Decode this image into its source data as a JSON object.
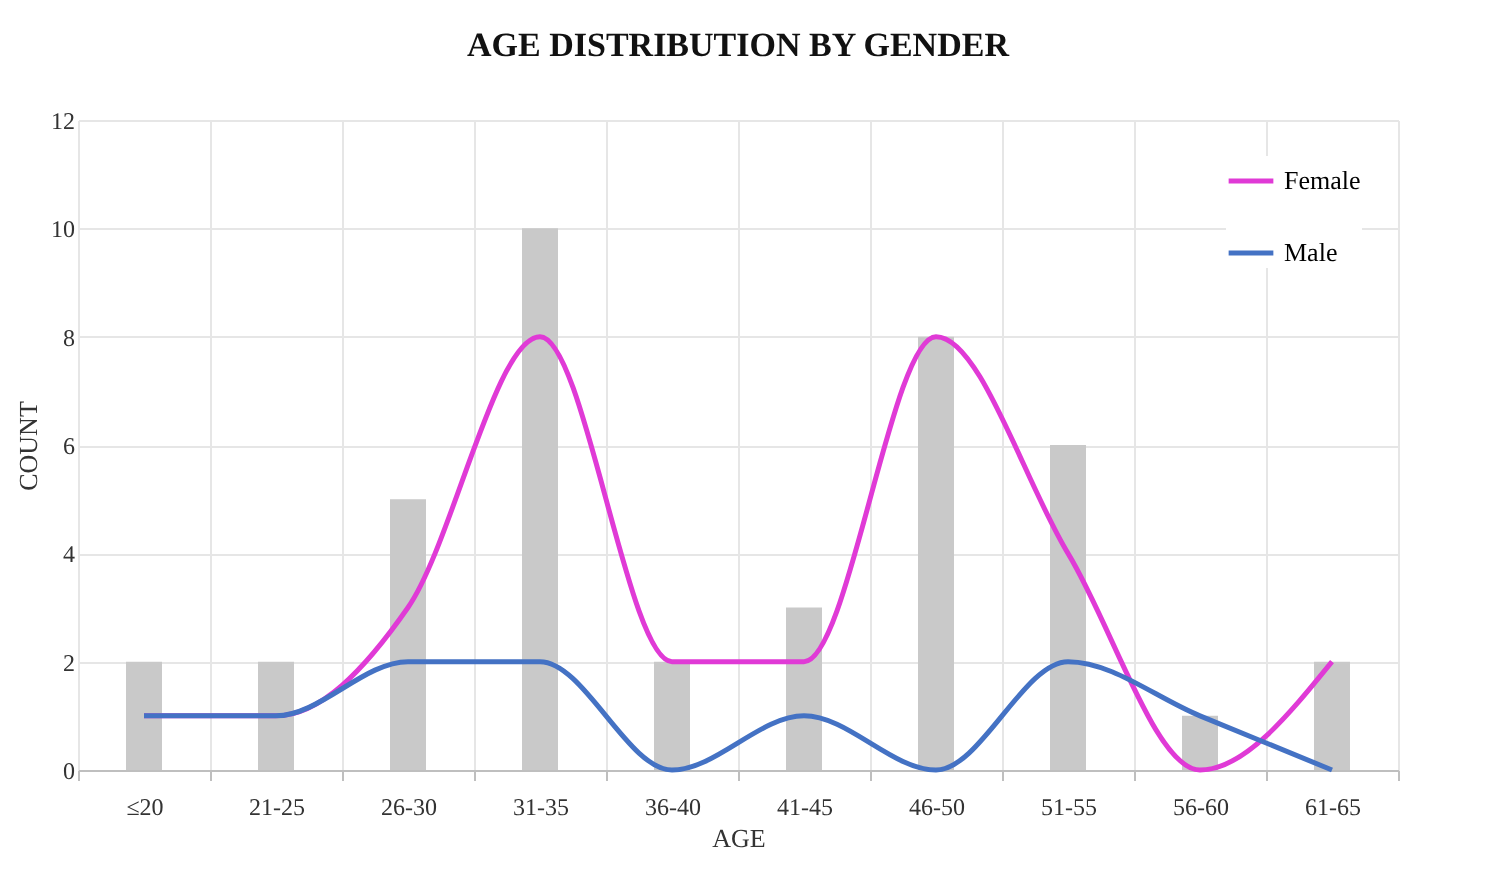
{
  "chart_data": {
    "type": "bar",
    "title": "AGE DISTRIBUTION BY GENDER",
    "xlabel": "AGE",
    "ylabel": "COUNT",
    "categories": [
      "≤20",
      "21-25",
      "26-30",
      "31-35",
      "36-40",
      "41-45",
      "46-50",
      "51-55",
      "56-60",
      "61-65"
    ],
    "series": [
      {
        "color": "#c9c9c9",
        "values": [
          2,
          2,
          5,
          10,
          2,
          3,
          8,
          6,
          1,
          2
        ]
      },
      {
        "type": "line",
        "name": "Female",
        "color": "#e03ad6",
        "values": [
          1,
          1,
          3,
          8,
          2,
          2,
          8,
          4,
          0,
          2
        ]
      },
      {
        "type": "line",
        "name": "Male",
        "color": "#4472c4",
        "values": [
          1,
          1,
          2,
          2,
          0,
          1,
          0,
          2,
          1,
          0
        ]
      }
    ],
    "ylim": [
      0,
      12
    ],
    "yticks": [
      0,
      2,
      4,
      6,
      8,
      10,
      12
    ],
    "grid": true,
    "legend": "top right",
    "marker": "none",
    "line_style": "solid"
  }
}
